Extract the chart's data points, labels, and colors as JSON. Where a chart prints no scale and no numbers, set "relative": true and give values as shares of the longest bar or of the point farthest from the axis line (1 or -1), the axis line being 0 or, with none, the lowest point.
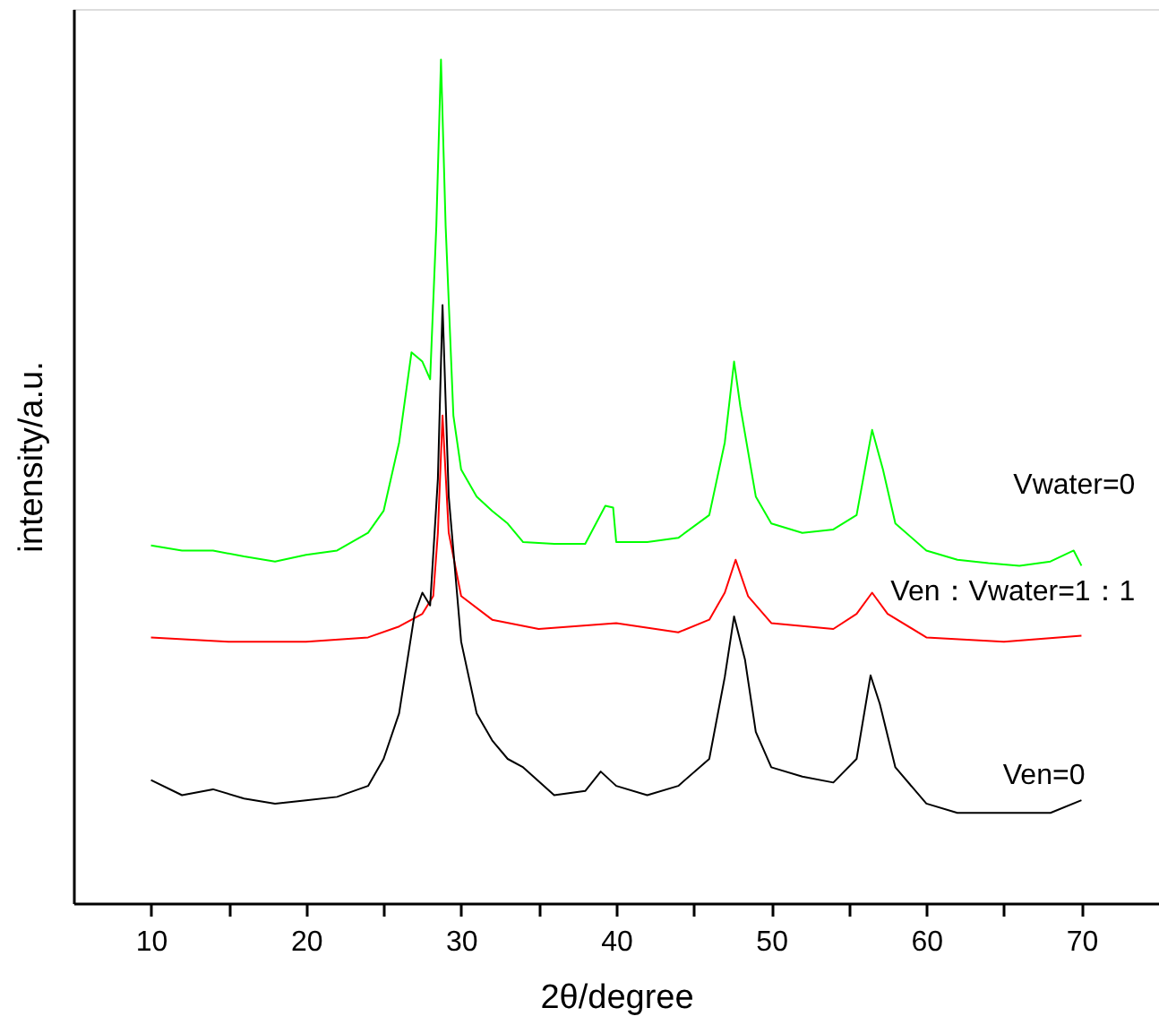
{
  "chart_data": {
    "type": "line",
    "relative": true,
    "xlabel": "2θ/degree",
    "ylabel": "intensity/a.u.",
    "xlim": [
      5,
      75
    ],
    "xticks": [
      10,
      {
        "value": 15,
        "label": null
      },
      20,
      {
        "value": 25,
        "label": null
      },
      30,
      {
        "value": 35,
        "label": null
      },
      40,
      {
        "value": 45,
        "label": null
      },
      50,
      {
        "value": 55,
        "label": null
      },
      60,
      {
        "value": 65,
        "label": null
      },
      70
    ],
    "grid": false,
    "marker": "none",
    "line_style": "solid",
    "series": [
      {
        "name": "Vwater=0",
        "color": "#00ff00",
        "x": [
          10,
          12,
          14,
          16,
          18,
          20,
          22,
          24,
          25,
          26,
          26.8,
          27.5,
          28,
          28.4,
          28.7,
          29,
          29.5,
          30,
          31,
          32,
          33,
          34,
          36,
          38,
          39.3,
          39.8,
          40,
          42,
          44,
          46,
          47,
          47.6,
          48,
          49,
          50,
          52,
          54,
          55.5,
          56.5,
          57.2,
          58,
          60,
          62,
          64,
          66,
          68,
          69.5,
          70
        ],
        "values": [
          0.424,
          0.418,
          0.418,
          0.411,
          0.405,
          0.413,
          0.418,
          0.439,
          0.465,
          0.546,
          0.653,
          0.642,
          0.621,
          0.803,
          1,
          0.803,
          0.578,
          0.514,
          0.482,
          0.465,
          0.45,
          0.428,
          0.426,
          0.426,
          0.471,
          0.469,
          0.428,
          0.428,
          0.433,
          0.46,
          0.546,
          0.642,
          0.589,
          0.482,
          0.45,
          0.439,
          0.443,
          0.46,
          0.561,
          0.514,
          0.45,
          0.418,
          0.407,
          0.403,
          0.4,
          0.405,
          0.418,
          0.4
        ]
      },
      {
        "name": "Ven：Vwater=1：1",
        "color": "#ff0000",
        "x": [
          10,
          15,
          20,
          24,
          26,
          27.5,
          28.2,
          28.5,
          28.8,
          29.2,
          30,
          32,
          35,
          40,
          44,
          46,
          47,
          47.7,
          48.5,
          50,
          54,
          55.5,
          56.5,
          57.5,
          60,
          65,
          70
        ],
        "values": [
          0.315,
          0.31,
          0.31,
          0.315,
          0.328,
          0.343,
          0.364,
          0.439,
          0.578,
          0.439,
          0.364,
          0.336,
          0.325,
          0.332,
          0.321,
          0.336,
          0.368,
          0.407,
          0.364,
          0.332,
          0.325,
          0.343,
          0.368,
          0.343,
          0.315,
          0.31,
          0.317
        ]
      },
      {
        "name": "Ven=0",
        "color": "#000000",
        "x": [
          10,
          12,
          14,
          16,
          18,
          20,
          22,
          24,
          25,
          26,
          27,
          27.5,
          28,
          28.5,
          28.8,
          29.2,
          30,
          31,
          32,
          33,
          34,
          36,
          38,
          39,
          40,
          42,
          44,
          46,
          47,
          47.6,
          48.3,
          49,
          50,
          52,
          54,
          55.5,
          56.4,
          57,
          58,
          60,
          62,
          65,
          68,
          70
        ],
        "values": [
          0.146,
          0.128,
          0.135,
          0.124,
          0.118,
          0.122,
          0.126,
          0.139,
          0.171,
          0.225,
          0.343,
          0.368,
          0.353,
          0.503,
          0.709,
          0.482,
          0.31,
          0.225,
          0.193,
          0.171,
          0.161,
          0.128,
          0.133,
          0.156,
          0.139,
          0.128,
          0.139,
          0.171,
          0.268,
          0.34,
          0.289,
          0.203,
          0.161,
          0.15,
          0.143,
          0.171,
          0.27,
          0.236,
          0.161,
          0.118,
          0.107,
          0.107,
          0.107,
          0.122
        ]
      }
    ]
  }
}
